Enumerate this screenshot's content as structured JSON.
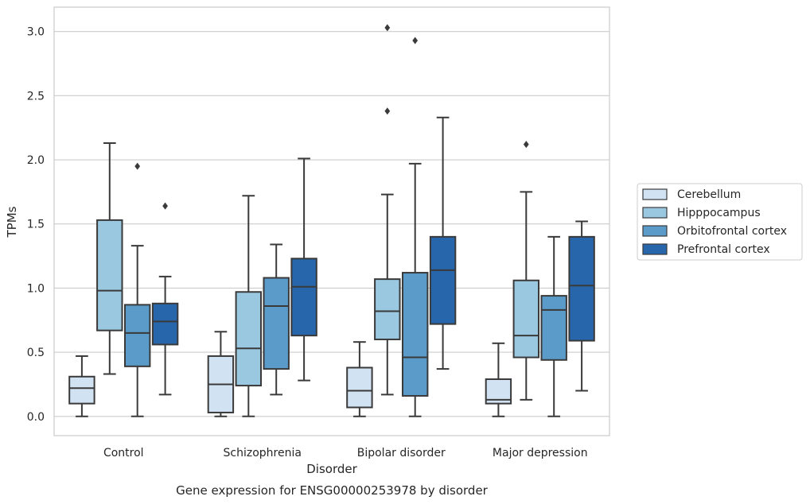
{
  "chart_data": {
    "type": "box",
    "title": "",
    "caption": "Gene expression for ENSG00000253978 by disorder",
    "xlabel": "Disorder",
    "ylabel": "TPMs",
    "ylim": [
      -0.15,
      3.19
    ],
    "yticks": [
      "0.0",
      "0.5",
      "1.0",
      "1.5",
      "2.0",
      "2.5",
      "3.0"
    ],
    "grid": "horizontal",
    "legend_position": "right",
    "categories": [
      "Control",
      "Schizophrenia",
      "Bipolar disorder",
      "Major depression"
    ],
    "series": [
      {
        "name": "Cerebellum",
        "color": "#d1e2f3",
        "boxes": [
          {
            "whisker_low": 0.0,
            "q1": 0.1,
            "median": 0.22,
            "q3": 0.31,
            "whisker_high": 0.47,
            "outliers": []
          },
          {
            "whisker_low": 0.0,
            "q1": 0.03,
            "median": 0.25,
            "q3": 0.47,
            "whisker_high": 0.66,
            "outliers": []
          },
          {
            "whisker_low": 0.0,
            "q1": 0.07,
            "median": 0.2,
            "q3": 0.38,
            "whisker_high": 0.58,
            "outliers": []
          },
          {
            "whisker_low": 0.0,
            "q1": 0.1,
            "median": 0.13,
            "q3": 0.29,
            "whisker_high": 0.57,
            "outliers": []
          }
        ]
      },
      {
        "name": "Hipppocampus",
        "color": "#9ac8e0",
        "boxes": [
          {
            "whisker_low": 0.33,
            "q1": 0.67,
            "median": 0.98,
            "q3": 1.53,
            "whisker_high": 2.13,
            "outliers": []
          },
          {
            "whisker_low": 0.0,
            "q1": 0.24,
            "median": 0.53,
            "q3": 0.97,
            "whisker_high": 1.72,
            "outliers": []
          },
          {
            "whisker_low": 0.17,
            "q1": 0.6,
            "median": 0.82,
            "q3": 1.07,
            "whisker_high": 1.73,
            "outliers": [
              2.38,
              3.03
            ]
          },
          {
            "whisker_low": 0.13,
            "q1": 0.46,
            "median": 0.63,
            "q3": 1.06,
            "whisker_high": 1.75,
            "outliers": [
              2.12
            ]
          }
        ]
      },
      {
        "name": "Orbitofrontal cortex",
        "color": "#5a9bc9",
        "boxes": [
          {
            "whisker_low": 0.0,
            "q1": 0.39,
            "median": 0.65,
            "q3": 0.87,
            "whisker_high": 1.33,
            "outliers": [
              1.95
            ]
          },
          {
            "whisker_low": 0.17,
            "q1": 0.37,
            "median": 0.86,
            "q3": 1.08,
            "whisker_high": 1.34,
            "outliers": []
          },
          {
            "whisker_low": 0.0,
            "q1": 0.16,
            "median": 0.46,
            "q3": 1.12,
            "whisker_high": 1.97,
            "outliers": [
              2.93
            ]
          },
          {
            "whisker_low": 0.0,
            "q1": 0.44,
            "median": 0.83,
            "q3": 0.94,
            "whisker_high": 1.4,
            "outliers": []
          }
        ]
      },
      {
        "name": "Prefrontal cortex",
        "color": "#2766aa",
        "boxes": [
          {
            "whisker_low": 0.17,
            "q1": 0.56,
            "median": 0.74,
            "q3": 0.88,
            "whisker_high": 1.09,
            "outliers": [
              1.64
            ]
          },
          {
            "whisker_low": 0.28,
            "q1": 0.63,
            "median": 1.01,
            "q3": 1.23,
            "whisker_high": 2.01,
            "outliers": []
          },
          {
            "whisker_low": 0.37,
            "q1": 0.72,
            "median": 1.14,
            "q3": 1.4,
            "whisker_high": 2.33,
            "outliers": []
          },
          {
            "whisker_low": 0.2,
            "q1": 0.59,
            "median": 1.02,
            "q3": 1.4,
            "whisker_high": 1.52,
            "outliers": []
          }
        ]
      }
    ]
  }
}
